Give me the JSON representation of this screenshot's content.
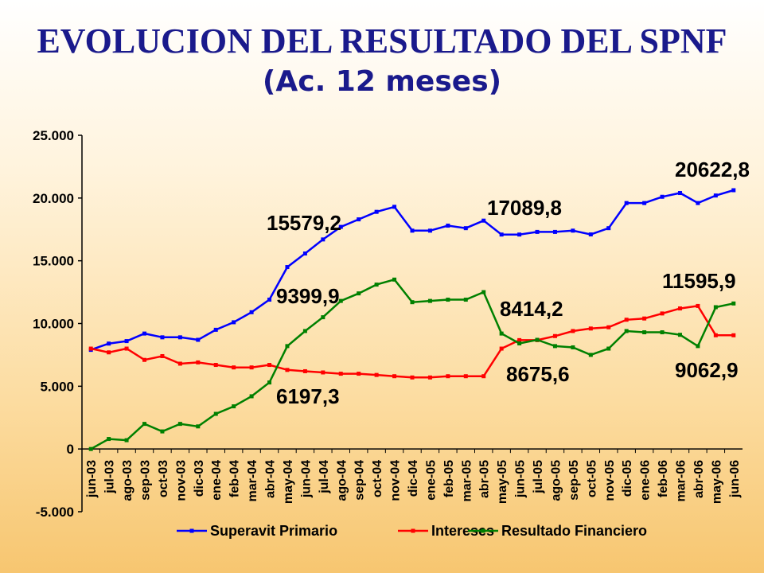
{
  "header": {
    "title": "EVOLUCION DEL RESULTADO DEL SPNF",
    "subtitle": "(Ac. 12 meses)"
  },
  "chart_data": {
    "type": "line",
    "categories": [
      "jun-03",
      "jul-03",
      "ago-03",
      "sep-03",
      "oct-03",
      "nov-03",
      "dic-03",
      "ene-04",
      "feb-04",
      "mar-04",
      "abr-04",
      "may-04",
      "jun-04",
      "jul-04",
      "ago-04",
      "sep-04",
      "oct-04",
      "nov-04",
      "dic-04",
      "ene-05",
      "feb-05",
      "mar-05",
      "abr-05",
      "may-05",
      "jun-05",
      "jul-05",
      "ago-05",
      "sep-05",
      "oct-05",
      "nov-05",
      "dic-05",
      "ene-06",
      "feb-06",
      "mar-06",
      "abr-06",
      "may-06",
      "jun-06"
    ],
    "series": [
      {
        "name": "Superavit Primario",
        "color": "#0000ff",
        "values": [
          7900,
          8400,
          8600,
          9200,
          8900,
          8900,
          8700,
          9500,
          10100,
          10900,
          11900,
          14500,
          15579.2,
          16700,
          17700,
          18300,
          18900,
          19300,
          17400,
          17400,
          17800,
          17600,
          18200,
          17089.8,
          17089.8,
          17300,
          17300,
          17400,
          17100,
          17600,
          19600,
          19600,
          20100,
          20400,
          19600,
          20200,
          20622.8
        ]
      },
      {
        "name": "Intereses",
        "color": "#ff0000",
        "values": [
          8000,
          7700,
          8000,
          7100,
          7400,
          6800,
          6900,
          6700,
          6500,
          6500,
          6700,
          6300,
          6197.3,
          6100,
          6000,
          6000,
          5900,
          5800,
          5700,
          5700,
          5800,
          5800,
          5800,
          8000,
          8675.6,
          8675.6,
          9000,
          9400,
          9600,
          9700,
          10300,
          10400,
          10800,
          11200,
          11400,
          9062.9,
          9062.9
        ]
      },
      {
        "name": "Resultado Financiero",
        "color": "#008000",
        "values": [
          0,
          800,
          700,
          2000,
          1400,
          2000,
          1800,
          2800,
          3400,
          4200,
          5300,
          8200,
          9399.9,
          10500,
          11800,
          12400,
          13100,
          13500,
          11700,
          11800,
          11900,
          11900,
          12500,
          9200,
          8414.2,
          8700,
          8200,
          8100,
          7500,
          8000,
          9400,
          9300,
          9300,
          9100,
          8200,
          11300,
          11595.9
        ]
      }
    ],
    "ylim": [
      -5000,
      25000
    ],
    "yticks": [
      -5000,
      0,
      5000,
      10000,
      15000,
      20000,
      25000
    ],
    "ytick_labels": [
      "-5.000",
      "0",
      "5.000",
      "10.000",
      "15.000",
      "20.000",
      "25.000"
    ],
    "annotations": [
      {
        "text": "15579,2",
        "category": "jun-04",
        "y": 15579.2
      },
      {
        "text": "17089,8",
        "category": "jun-05",
        "y": 17089.8
      },
      {
        "text": "20622,8",
        "category": "jun-06",
        "y": 20622.8
      },
      {
        "text": "9399,9",
        "category": "jun-04",
        "y": 9399.9
      },
      {
        "text": "6197,3",
        "category": "jun-04",
        "y": 6197.3
      },
      {
        "text": "8414,2",
        "category": "jun-05",
        "y": 8414.2
      },
      {
        "text": "8675,6",
        "category": "jun-05",
        "y": 8675.6
      },
      {
        "text": "11595,9",
        "category": "jun-06",
        "y": 11595.9
      },
      {
        "text": "9062,9",
        "category": "jun-06",
        "y": 9062.9
      }
    ],
    "grid": false,
    "legend": "bottom"
  }
}
